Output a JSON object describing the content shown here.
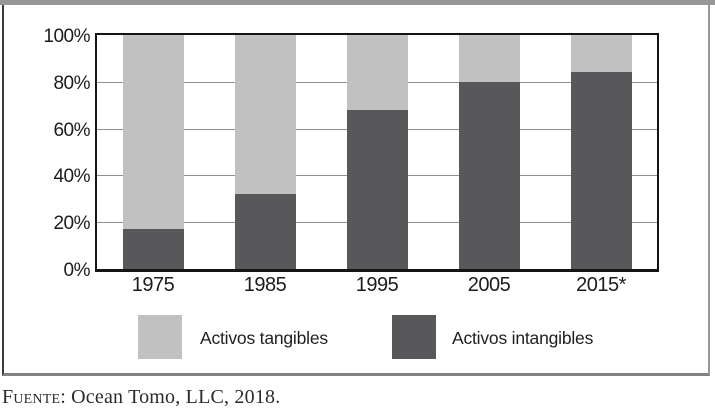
{
  "chart_data": {
    "type": "bar",
    "stacked": true,
    "orientation": "vertical",
    "categories": [
      "1975",
      "1985",
      "1995",
      "2005",
      "2015*"
    ],
    "series": [
      {
        "name": "Activos tangibles",
        "color": "#c1c1c1",
        "values": [
          83,
          68,
          32,
          20,
          16
        ]
      },
      {
        "name": "Activos intangibles",
        "color": "#58585a",
        "values": [
          17,
          32,
          68,
          80,
          84
        ]
      }
    ],
    "title": "",
    "xlabel": "",
    "ylabel": "",
    "ylim": [
      0,
      100
    ],
    "yticks": [
      "0%",
      "20%",
      "40%",
      "60%",
      "80%",
      "100%"
    ],
    "grid": true,
    "legend_position": "bottom"
  },
  "legend": {
    "items": [
      {
        "label": "Activos tangibles",
        "color": "#c1c1c1"
      },
      {
        "label": "Activos intangibles",
        "color": "#58585a"
      }
    ]
  },
  "source": {
    "prefix": "Fuente",
    "rest": ": Ocean Tomo, LLC, 2018."
  }
}
